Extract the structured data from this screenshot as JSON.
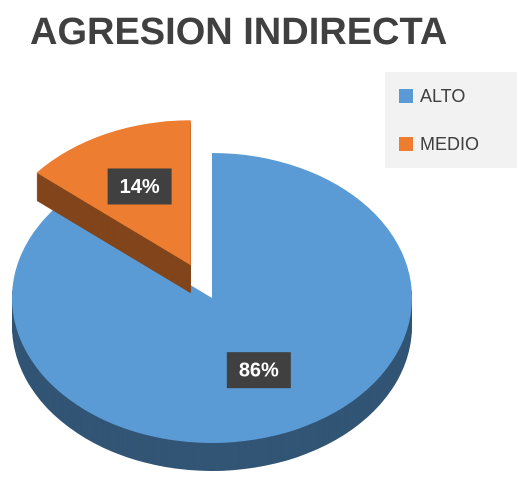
{
  "chart_data": {
    "type": "pie",
    "title": "AGRESION INDIRECTA",
    "categories": [
      "ALTO",
      "MEDIO"
    ],
    "values": [
      86,
      14
    ],
    "value_labels": [
      "86%",
      "14%"
    ],
    "colors": [
      "#5b9bd5",
      "#ed7d31"
    ],
    "legend": "right"
  }
}
